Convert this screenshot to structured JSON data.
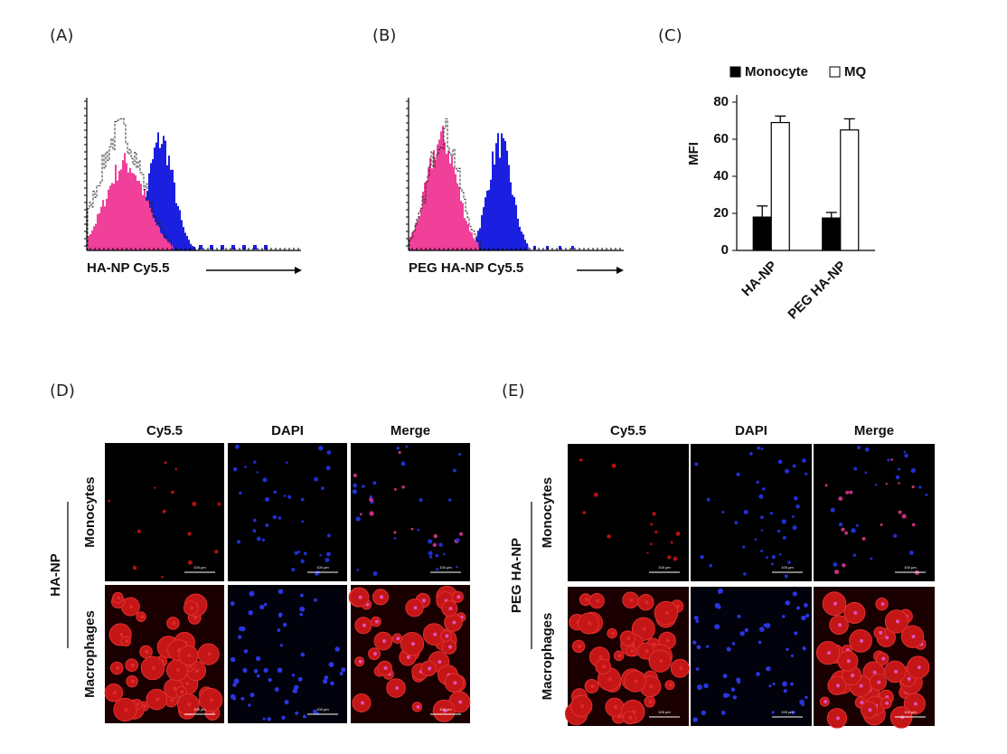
{
  "panel_labels": [
    "(A)",
    "(B)",
    "(C)",
    "(D)",
    "(E)"
  ],
  "histograms": [
    {
      "axis_label": "HA-NP Cy5.5"
    },
    {
      "axis_label": "PEG HA-NP Cy5.5"
    }
  ],
  "chart_data": {
    "type": "bar",
    "y_label": "MFI",
    "categories": [
      "HA-NP",
      "PEG HA-NP"
    ],
    "series": [
      {
        "name": "Monocyte",
        "color": "#000000",
        "values": [
          18,
          17.5
        ],
        "errors": [
          6,
          3
        ]
      },
      {
        "name": "MQ",
        "color": "#ffffff",
        "values": [
          69,
          65
        ],
        "errors": [
          3.5,
          6
        ]
      }
    ],
    "ylim": [
      0,
      80
    ],
    "yticks": [
      0,
      20,
      40,
      60,
      80
    ],
    "legend": "top"
  },
  "micrographs": [
    {
      "group": "HA-NP",
      "columns": [
        "Cy5.5",
        "DAPI",
        "Merge"
      ],
      "rows": [
        "Monocytes",
        "Macrophages"
      ],
      "scale_bar": "100 μm"
    },
    {
      "group": "PEG HA-NP",
      "columns": [
        "Cy5.5",
        "DAPI",
        "Merge"
      ],
      "rows": [
        "Monocytes",
        "Macrophages"
      ],
      "scale_bar": "100 μm"
    }
  ]
}
